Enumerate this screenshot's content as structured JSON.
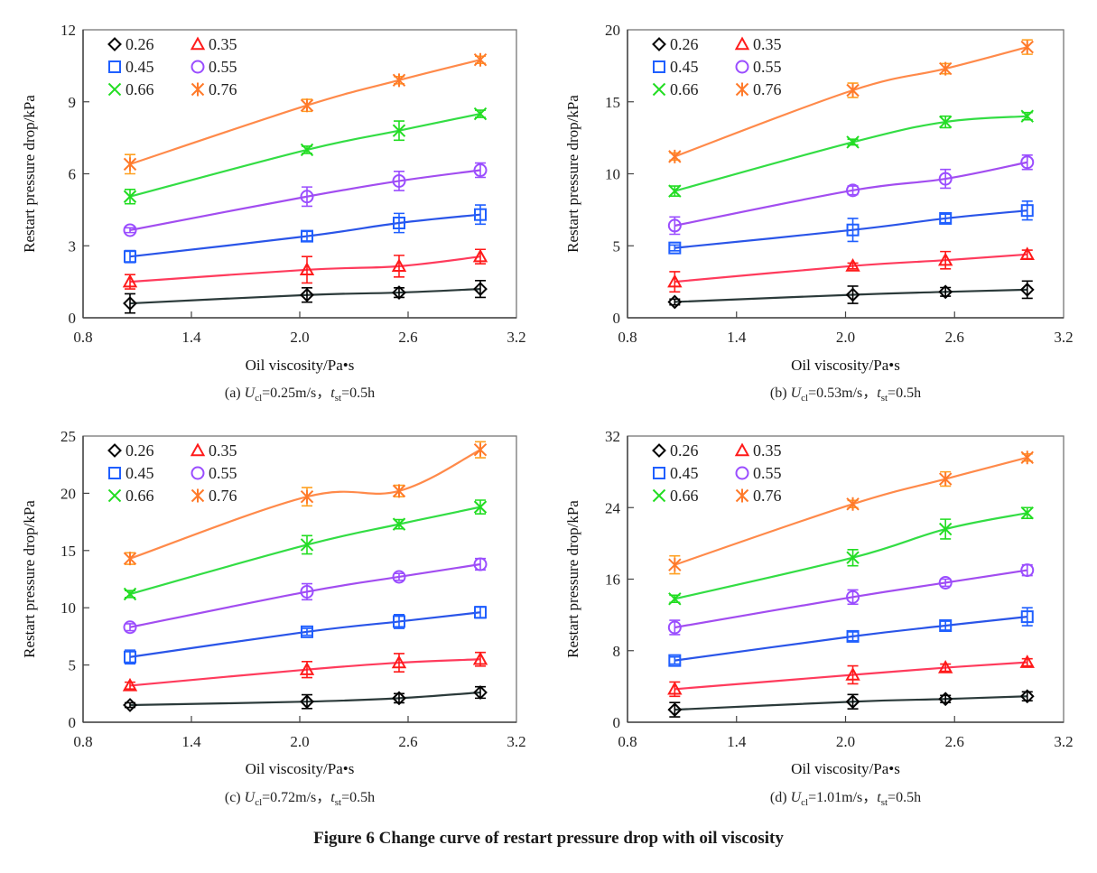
{
  "figure_caption": "Figure 6 Change curve of restart pressure drop with oil viscosity",
  "chart_data": [
    {
      "type": "line",
      "panel": "a",
      "title": "(a) U_cl=0.25m/s, t_st=0.5h",
      "caption_parts": {
        "prefix": "(a) ",
        "U": "U",
        "U_sub": "cl",
        "U_val": "=0.25m/s，",
        "t": "t",
        "t_sub": "st",
        "t_val": "=0.5h"
      },
      "xlabel": "Oil viscosity/Pa•s",
      "ylabel": "Restart pressure drop/kPa",
      "xlim": [
        0.8,
        3.2
      ],
      "ylim": [
        0,
        12
      ],
      "xticks": [
        "0.8",
        "1.4",
        "2.0",
        "2.6",
        "3.2"
      ],
      "yticks": [
        "0",
        "3",
        "6",
        "9",
        "12"
      ],
      "x": [
        1.06,
        2.04,
        2.55,
        3.0
      ],
      "legend": "top-left",
      "grid": false,
      "series": [
        {
          "name": "0.26",
          "marker": "diamond",
          "color": "#000000",
          "line": "#2b3a3a",
          "values": [
            0.6,
            0.95,
            1.05,
            1.2
          ],
          "err": [
            0.4,
            0.3,
            0.2,
            0.35
          ]
        },
        {
          "name": "0.35",
          "marker": "triangle",
          "color": "#ff1a1a",
          "line": "#ff3b5c",
          "values": [
            1.5,
            2.0,
            2.15,
            2.55
          ],
          "err": [
            0.3,
            0.55,
            0.45,
            0.3
          ]
        },
        {
          "name": "0.45",
          "marker": "square",
          "color": "#1f5fff",
          "line": "#2a55e8",
          "values": [
            2.55,
            3.4,
            3.95,
            4.3
          ],
          "err": [
            0.25,
            0.2,
            0.4,
            0.4
          ]
        },
        {
          "name": "0.55",
          "marker": "circle",
          "color": "#9a4dff",
          "line": "#a24df0",
          "values": [
            3.65,
            5.05,
            5.7,
            6.15
          ],
          "err": [
            0.1,
            0.4,
            0.4,
            0.3
          ]
        },
        {
          "name": "0.66",
          "marker": "x",
          "color": "#22dd22",
          "line": "#33dd44",
          "values": [
            5.05,
            7.0,
            7.8,
            8.5
          ],
          "err": [
            0.3,
            0.15,
            0.4,
            0.15
          ]
        },
        {
          "name": "0.76",
          "marker": "asterisk",
          "color": "#ff7a2a",
          "line": "#ff8a4a",
          "values": [
            6.4,
            8.85,
            9.9,
            10.75
          ],
          "err": [
            0.4,
            0.25,
            0.15,
            0.15
          ]
        }
      ]
    },
    {
      "type": "line",
      "panel": "b",
      "title": "(b) U_cl=0.53m/s, t_st=0.5h",
      "caption_parts": {
        "prefix": "(b) ",
        "U": "U",
        "U_sub": "cl",
        "U_val": "=0.53m/s，",
        "t": "t",
        "t_sub": "st",
        "t_val": "=0.5h"
      },
      "xlabel": "Oil viscosity/Pa•s",
      "ylabel": "Restart pressure drop/kPa",
      "xlim": [
        0.8,
        3.2
      ],
      "ylim": [
        0,
        20
      ],
      "xticks": [
        "0.8",
        "1.4",
        "2.0",
        "2.6",
        "3.2"
      ],
      "yticks": [
        "0",
        "5",
        "10",
        "15",
        "20"
      ],
      "x": [
        1.06,
        2.04,
        2.55,
        3.0
      ],
      "legend": "top-left",
      "grid": false,
      "series": [
        {
          "name": "0.26",
          "marker": "diamond",
          "color": "#000000",
          "line": "#2b3a3a",
          "values": [
            1.1,
            1.6,
            1.8,
            1.95
          ],
          "err": [
            0.2,
            0.6,
            0.3,
            0.6
          ]
        },
        {
          "name": "0.35",
          "marker": "triangle",
          "color": "#ff1a1a",
          "line": "#ff3b5c",
          "values": [
            2.5,
            3.6,
            4.0,
            4.4
          ],
          "err": [
            0.7,
            0.2,
            0.6,
            0.3
          ]
        },
        {
          "name": "0.45",
          "marker": "square",
          "color": "#1f5fff",
          "line": "#2a55e8",
          "values": [
            4.85,
            6.1,
            6.9,
            7.45
          ],
          "err": [
            0.2,
            0.8,
            0.3,
            0.65
          ]
        },
        {
          "name": "0.55",
          "marker": "circle",
          "color": "#9a4dff",
          "line": "#a24df0",
          "values": [
            6.4,
            8.85,
            9.65,
            10.8
          ],
          "err": [
            0.6,
            0.3,
            0.65,
            0.5
          ]
        },
        {
          "name": "0.66",
          "marker": "x",
          "color": "#22dd22",
          "line": "#33dd44",
          "values": [
            8.8,
            12.2,
            13.6,
            14.0
          ],
          "err": [
            0.35,
            0.2,
            0.4,
            0.25
          ]
        },
        {
          "name": "0.76",
          "marker": "asterisk",
          "color": "#ff7a2a",
          "line": "#ff8a4a",
          "values": [
            11.2,
            15.8,
            17.3,
            18.8
          ],
          "err": [
            0.25,
            0.5,
            0.35,
            0.5
          ]
        }
      ]
    },
    {
      "type": "line",
      "panel": "c",
      "title": "(c) U_cl=0.72m/s, t_st=0.5h",
      "caption_parts": {
        "prefix": "(c) ",
        "U": "U",
        "U_sub": "cl",
        "U_val": "=0.72m/s，",
        "t": "t",
        "t_sub": "st",
        "t_val": "=0.5h"
      },
      "xlabel": "Oil viscosity/Pa•s",
      "ylabel": "Restart pressure drop/kPa",
      "xlim": [
        0.8,
        3.2
      ],
      "ylim": [
        0,
        25
      ],
      "xticks": [
        "0.8",
        "1.4",
        "2.0",
        "2.6",
        "3.2"
      ],
      "yticks": [
        "0",
        "5",
        "10",
        "15",
        "20",
        "25"
      ],
      "x": [
        1.06,
        2.04,
        2.55,
        3.0
      ],
      "legend": "top-left",
      "grid": false,
      "series": [
        {
          "name": "0.26",
          "marker": "diamond",
          "color": "#000000",
          "line": "#2b3a3a",
          "values": [
            1.5,
            1.8,
            2.1,
            2.6
          ],
          "err": [
            0.2,
            0.6,
            0.4,
            0.5
          ]
        },
        {
          "name": "0.35",
          "marker": "triangle",
          "color": "#ff1a1a",
          "line": "#ff3b5c",
          "values": [
            3.2,
            4.6,
            5.2,
            5.5
          ],
          "err": [
            0.3,
            0.7,
            0.8,
            0.6
          ]
        },
        {
          "name": "0.45",
          "marker": "square",
          "color": "#1f5fff",
          "line": "#2a55e8",
          "values": [
            5.7,
            7.9,
            8.8,
            9.6
          ],
          "err": [
            0.6,
            0.3,
            0.6,
            0.5
          ]
        },
        {
          "name": "0.55",
          "marker": "circle",
          "color": "#9a4dff",
          "line": "#a24df0",
          "values": [
            8.3,
            11.4,
            12.7,
            13.8
          ],
          "err": [
            0.3,
            0.7,
            0.3,
            0.5
          ]
        },
        {
          "name": "0.66",
          "marker": "x",
          "color": "#22dd22",
          "line": "#33dd44",
          "values": [
            11.2,
            15.5,
            17.3,
            18.8
          ],
          "err": [
            0.3,
            0.8,
            0.4,
            0.6
          ]
        },
        {
          "name": "0.76",
          "marker": "asterisk",
          "color": "#ff7a2a",
          "line": "#ff8a4a",
          "values": [
            14.3,
            19.7,
            20.2,
            23.8
          ],
          "err": [
            0.5,
            0.8,
            0.5,
            0.7
          ]
        }
      ]
    },
    {
      "type": "line",
      "panel": "d",
      "title": "(d) U_cl=1.01m/s, t_st=0.5h",
      "caption_parts": {
        "prefix": "(d) ",
        "U": "U",
        "U_sub": "cl",
        "U_val": "=1.01m/s，",
        "t": "t",
        "t_sub": "st",
        "t_val": "=0.5h"
      },
      "xlabel": "Oil viscosity/Pa•s",
      "ylabel": "Restart pressure drop/kPa",
      "xlim": [
        0.8,
        3.2
      ],
      "ylim": [
        0,
        32
      ],
      "xticks": [
        "0.8",
        "1.4",
        "2.0",
        "2.6",
        "3.2"
      ],
      "yticks": [
        "0",
        "8",
        "16",
        "24",
        "32"
      ],
      "x": [
        1.06,
        2.04,
        2.55,
        3.0
      ],
      "legend": "top-left",
      "grid": false,
      "series": [
        {
          "name": "0.26",
          "marker": "diamond",
          "color": "#000000",
          "line": "#2b3a3a",
          "values": [
            1.4,
            2.3,
            2.6,
            2.9
          ],
          "err": [
            0.8,
            0.8,
            0.4,
            0.5
          ]
        },
        {
          "name": "0.35",
          "marker": "triangle",
          "color": "#ff1a1a",
          "line": "#ff3b5c",
          "values": [
            3.7,
            5.3,
            6.1,
            6.7
          ],
          "err": [
            0.8,
            1.0,
            0.4,
            0.4
          ]
        },
        {
          "name": "0.45",
          "marker": "square",
          "color": "#1f5fff",
          "line": "#2a55e8",
          "values": [
            6.9,
            9.6,
            10.8,
            11.8
          ],
          "err": [
            0.4,
            0.5,
            0.5,
            1.0
          ]
        },
        {
          "name": "0.55",
          "marker": "circle",
          "color": "#9a4dff",
          "line": "#a24df0",
          "values": [
            10.6,
            14.0,
            15.6,
            17.0
          ],
          "err": [
            0.8,
            0.8,
            0.4,
            0.6
          ]
        },
        {
          "name": "0.66",
          "marker": "x",
          "color": "#22dd22",
          "line": "#33dd44",
          "values": [
            13.8,
            18.4,
            21.6,
            23.4
          ],
          "err": [
            0.4,
            0.9,
            1.1,
            0.6
          ]
        },
        {
          "name": "0.76",
          "marker": "asterisk",
          "color": "#ff7a2a",
          "line": "#ff8a4a",
          "values": [
            17.6,
            24.4,
            27.2,
            29.6
          ],
          "err": [
            1.0,
            0.4,
            0.8,
            0.4
          ]
        }
      ]
    }
  ]
}
